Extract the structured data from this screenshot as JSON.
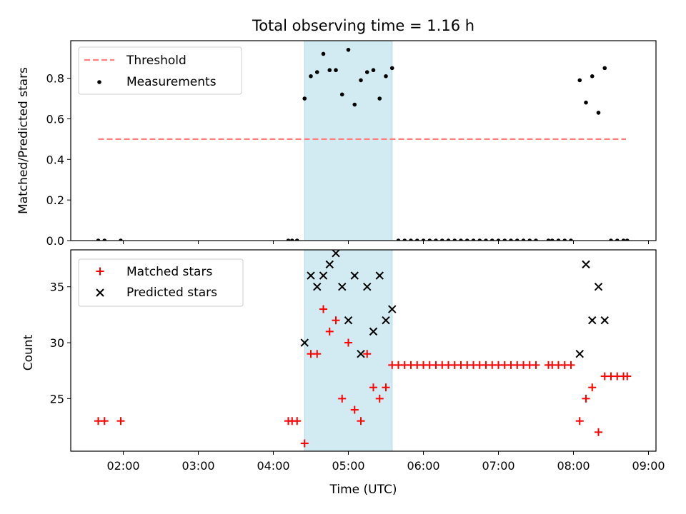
{
  "colors": {
    "threshold": "#ff7f7f",
    "measurement": "#000000",
    "matched": "#ff0000",
    "predicted": "#000000",
    "span_fill": "#add8e6",
    "axes": "#000000",
    "background": "#ffffff"
  },
  "chart_data": [
    {
      "type": "scatter",
      "title": "Total observing time = 1.16 h",
      "xlabel": "",
      "ylabel": "Matched/Predicted stars",
      "xlim": [
        "01:18",
        "09:06"
      ],
      "ylim": [
        0,
        0.985
      ],
      "yticks": [
        0.0,
        0.2,
        0.4,
        0.6,
        0.8
      ],
      "ytick_labels": [
        "0.0",
        "0.2",
        "0.4",
        "0.6",
        "0.8"
      ],
      "grid": false,
      "legend_position": "upper-left",
      "highlight_span": [
        "04:25",
        "05:35"
      ],
      "series": [
        {
          "name": "Threshold",
          "kind": "dashed-line",
          "x": [
            "01:40",
            "08:42"
          ],
          "y": [
            0.5,
            0.5
          ]
        },
        {
          "name": "Measurements",
          "kind": "dots",
          "points": [
            [
              "01:40",
              0
            ],
            [
              "01:45",
              0
            ],
            [
              "01:58",
              0
            ],
            [
              "04:12",
              0
            ],
            [
              "04:15",
              0
            ],
            [
              "04:19",
              0
            ],
            [
              "04:25",
              0.7
            ],
            [
              "04:30",
              0.81
            ],
            [
              "04:35",
              0.83
            ],
            [
              "04:40",
              0.92
            ],
            [
              "04:45",
              0.84
            ],
            [
              "04:50",
              0.84
            ],
            [
              "04:55",
              0.72
            ],
            [
              "05:00",
              0.94
            ],
            [
              "05:05",
              0.67
            ],
            [
              "05:10",
              0.79
            ],
            [
              "05:15",
              0.83
            ],
            [
              "05:20",
              0.84
            ],
            [
              "05:25",
              0.7
            ],
            [
              "05:30",
              0.81
            ],
            [
              "05:35",
              0.85
            ],
            [
              "05:40",
              0
            ],
            [
              "05:45",
              0
            ],
            [
              "05:50",
              0
            ],
            [
              "05:55",
              0
            ],
            [
              "06:00",
              0
            ],
            [
              "06:05",
              0
            ],
            [
              "06:10",
              0
            ],
            [
              "06:15",
              0
            ],
            [
              "06:20",
              0
            ],
            [
              "06:25",
              0
            ],
            [
              "06:30",
              0
            ],
            [
              "06:35",
              0
            ],
            [
              "06:40",
              0
            ],
            [
              "06:45",
              0
            ],
            [
              "06:50",
              0
            ],
            [
              "06:55",
              0
            ],
            [
              "07:00",
              0
            ],
            [
              "07:05",
              0
            ],
            [
              "07:10",
              0
            ],
            [
              "07:15",
              0
            ],
            [
              "07:20",
              0
            ],
            [
              "07:25",
              0
            ],
            [
              "07:30",
              0
            ],
            [
              "07:40",
              0
            ],
            [
              "07:43",
              0
            ],
            [
              "07:48",
              0
            ],
            [
              "07:53",
              0
            ],
            [
              "07:58",
              0
            ],
            [
              "08:05",
              0.79
            ],
            [
              "08:10",
              0.68
            ],
            [
              "08:15",
              0.81
            ],
            [
              "08:20",
              0.63
            ],
            [
              "08:25",
              0.85
            ],
            [
              "08:30",
              0
            ],
            [
              "08:35",
              0
            ],
            [
              "08:40",
              0
            ],
            [
              "08:43",
              0
            ]
          ]
        }
      ]
    },
    {
      "type": "scatter",
      "title": "",
      "xlabel": "Time (UTC)",
      "ylabel": "Count",
      "xlim": [
        "01:18",
        "09:06"
      ],
      "ylim": [
        20.3,
        38.3
      ],
      "yticks": [
        25,
        30,
        35
      ],
      "ytick_labels": [
        "25",
        "30",
        "35"
      ],
      "xticks": [
        "02:00",
        "03:00",
        "04:00",
        "05:00",
        "06:00",
        "07:00",
        "08:00",
        "09:00"
      ],
      "grid": false,
      "legend_position": "upper-left",
      "highlight_span": [
        "04:25",
        "05:35"
      ],
      "series": [
        {
          "name": "Matched stars",
          "marker": "plus",
          "points": [
            [
              "01:40",
              23
            ],
            [
              "01:45",
              23
            ],
            [
              "01:58",
              23
            ],
            [
              "04:12",
              23
            ],
            [
              "04:15",
              23
            ],
            [
              "04:19",
              23
            ],
            [
              "04:25",
              21
            ],
            [
              "04:30",
              29
            ],
            [
              "04:35",
              29
            ],
            [
              "04:40",
              33
            ],
            [
              "04:45",
              31
            ],
            [
              "04:50",
              32
            ],
            [
              "04:55",
              25
            ],
            [
              "05:00",
              30
            ],
            [
              "05:05",
              24
            ],
            [
              "05:10",
              23
            ],
            [
              "05:15",
              29
            ],
            [
              "05:20",
              26
            ],
            [
              "05:25",
              25
            ],
            [
              "05:30",
              26
            ],
            [
              "05:35",
              28
            ],
            [
              "05:40",
              28
            ],
            [
              "05:45",
              28
            ],
            [
              "05:50",
              28
            ],
            [
              "05:55",
              28
            ],
            [
              "06:00",
              28
            ],
            [
              "06:05",
              28
            ],
            [
              "06:10",
              28
            ],
            [
              "06:15",
              28
            ],
            [
              "06:20",
              28
            ],
            [
              "06:25",
              28
            ],
            [
              "06:30",
              28
            ],
            [
              "06:35",
              28
            ],
            [
              "06:40",
              28
            ],
            [
              "06:45",
              28
            ],
            [
              "06:50",
              28
            ],
            [
              "06:55",
              28
            ],
            [
              "07:00",
              28
            ],
            [
              "07:05",
              28
            ],
            [
              "07:10",
              28
            ],
            [
              "07:15",
              28
            ],
            [
              "07:20",
              28
            ],
            [
              "07:25",
              28
            ],
            [
              "07:30",
              28
            ],
            [
              "07:40",
              28
            ],
            [
              "07:43",
              28
            ],
            [
              "07:48",
              28
            ],
            [
              "07:53",
              28
            ],
            [
              "07:58",
              28
            ],
            [
              "08:05",
              23
            ],
            [
              "08:10",
              25
            ],
            [
              "08:15",
              26
            ],
            [
              "08:20",
              22
            ],
            [
              "08:25",
              27
            ],
            [
              "08:30",
              27
            ],
            [
              "08:35",
              27
            ],
            [
              "08:40",
              27
            ],
            [
              "08:43",
              27
            ]
          ]
        },
        {
          "name": "Predicted stars",
          "marker": "x",
          "points": [
            [
              "04:25",
              30
            ],
            [
              "04:30",
              36
            ],
            [
              "04:35",
              35
            ],
            [
              "04:40",
              36
            ],
            [
              "04:45",
              37
            ],
            [
              "04:50",
              38
            ],
            [
              "04:55",
              35
            ],
            [
              "05:00",
              32
            ],
            [
              "05:05",
              36
            ],
            [
              "05:10",
              29
            ],
            [
              "05:15",
              35
            ],
            [
              "05:20",
              31
            ],
            [
              "05:25",
              36
            ],
            [
              "05:30",
              32
            ],
            [
              "05:35",
              33
            ],
            [
              "08:05",
              29
            ],
            [
              "08:10",
              37
            ],
            [
              "08:15",
              32
            ],
            [
              "08:20",
              35
            ],
            [
              "08:25",
              32
            ]
          ]
        }
      ]
    }
  ]
}
